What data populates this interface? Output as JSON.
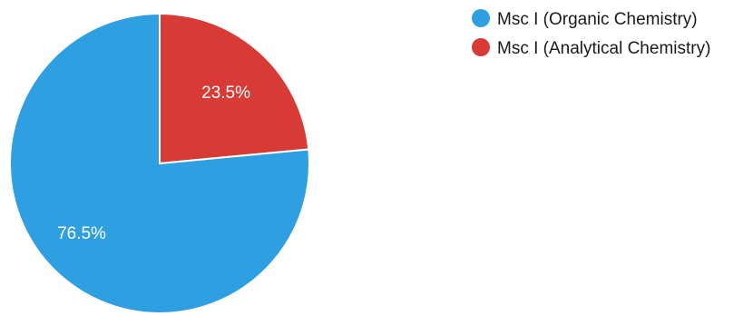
{
  "chart_data": {
    "type": "pie",
    "slices": [
      {
        "label": "Msc I (Organic Chemistry)",
        "value": 76.5,
        "value_label": "76.5%",
        "color": "#2e9fe0"
      },
      {
        "label": "Msc I (Analytical Chemistry)",
        "value": 23.5,
        "value_label": "23.5%",
        "color": "#d83a35"
      }
    ],
    "start_angle": "12 o'clock",
    "direction": "clockwise from 12 o'clock, first slice ends at 3 o'clock (smaller slice first)",
    "legend_position": "top-right"
  }
}
